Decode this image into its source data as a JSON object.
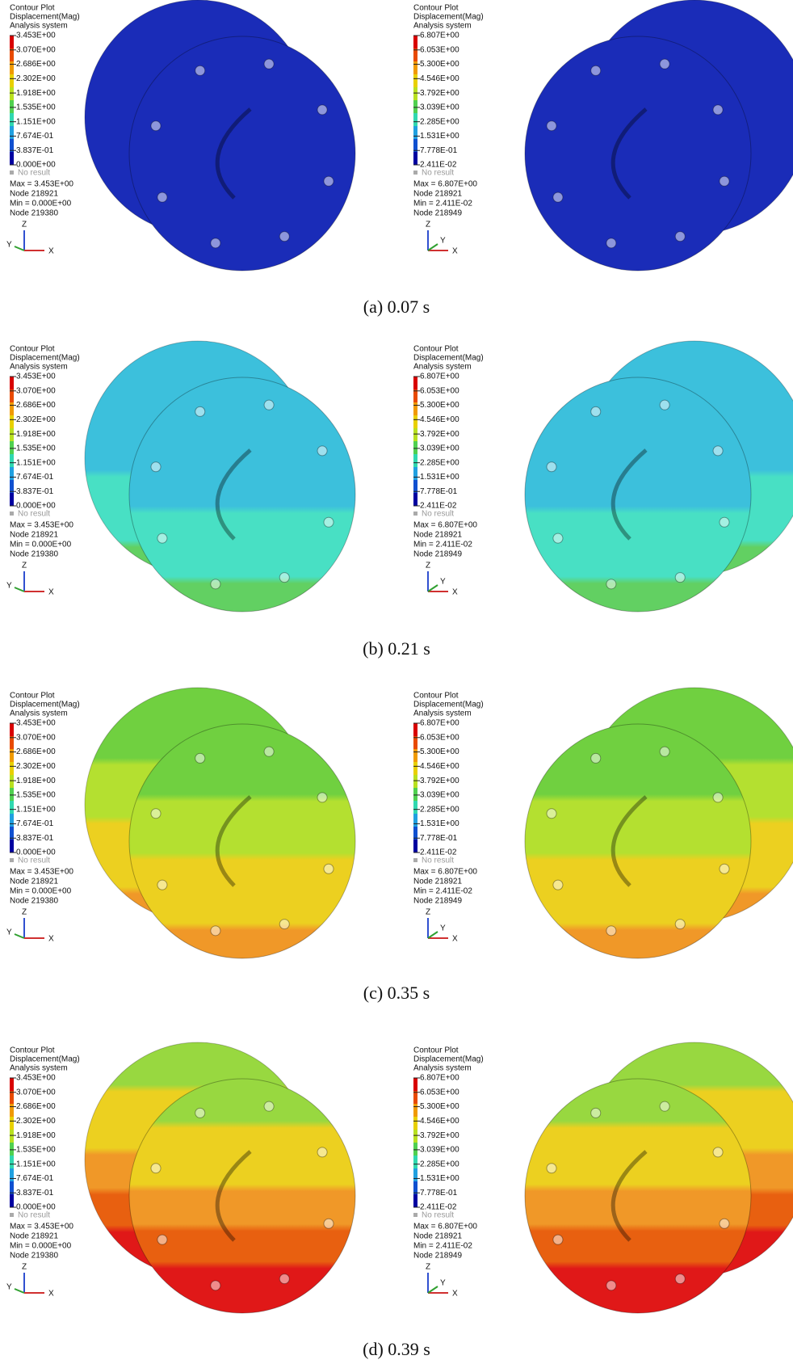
{
  "legends": {
    "left": {
      "title": [
        "Contour Plot",
        "Displacement(Mag)",
        "Analysis system"
      ],
      "levels": [
        "3.453E+00",
        "3.070E+00",
        "2.686E+00",
        "2.302E+00",
        "1.918E+00",
        "1.535E+00",
        "1.151E+00",
        "7.674E-01",
        "3.837E-01",
        "0.000E+00"
      ],
      "no_result": "No result",
      "max": "Max = 3.453E+00",
      "max_node": "Node 218921",
      "min": "Min = 0.000E+00",
      "min_node": "Node 219380",
      "axes": [
        "Z",
        "Y",
        "X"
      ]
    },
    "right": {
      "title": [
        "Contour Plot",
        "Displacement(Mag)",
        "Analysis system"
      ],
      "levels": [
        "6.807E+00",
        "6.053E+00",
        "5.300E+00",
        "4.546E+00",
        "3.792E+00",
        "3.039E+00",
        "2.285E+00",
        "1.531E+00",
        "7.778E-01",
        "2.411E-02"
      ],
      "no_result": "No result",
      "max": "Max = 6.807E+00",
      "max_node": "Node 218921",
      "min": "Min = 2.411E-02",
      "min_node": "Node 218949",
      "axes": [
        "Z",
        "Y",
        "X"
      ]
    }
  },
  "rows": [
    {
      "caption": "(a) 0.07 s"
    },
    {
      "caption": "(b) 0.21 s"
    },
    {
      "caption": "(c) 0.35 s"
    },
    {
      "caption": "(d) 0.39 s"
    }
  ]
}
